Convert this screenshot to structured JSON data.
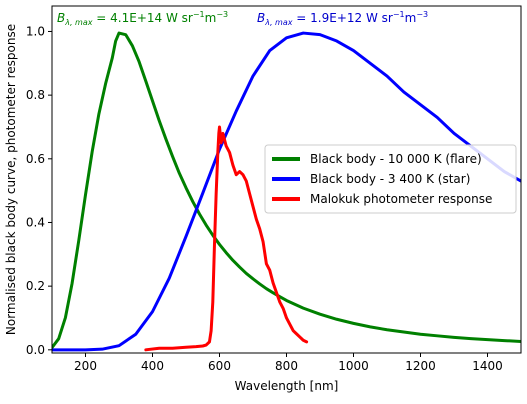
{
  "chart_data": {
    "type": "line",
    "title": "",
    "xlabel": "Wavelength [nm]",
    "ylabel": "Normalised black body curve, photometer response",
    "xlim": [
      100,
      1500
    ],
    "ylim": [
      -0.01,
      1.08
    ],
    "xticks": [
      200,
      400,
      600,
      800,
      1000,
      1200,
      1400
    ],
    "yticks": [
      0.0,
      0.2,
      0.4,
      0.6,
      0.8,
      1.0
    ],
    "grid": false,
    "legend_position": "center-right",
    "annotations": [
      {
        "prefix": "B",
        "sub": "λ, max",
        "text": " = 4.1E+14 W sr",
        "sup1": "−1",
        "mid": "m",
        "sup2": "−3",
        "color": "#008000"
      },
      {
        "prefix": "B",
        "sub": "λ, max",
        "text": " = 1.9E+12 W sr",
        "sup1": "−1",
        "mid": "m",
        "sup2": "−3",
        "color": "#0000cc"
      }
    ],
    "series": [
      {
        "name": "Black body - 10 000 K (flare)",
        "color": "#008000",
        "x": [
          100,
          120,
          140,
          160,
          180,
          200,
          220,
          240,
          260,
          280,
          290,
          300,
          320,
          340,
          360,
          380,
          400,
          420,
          440,
          460,
          480,
          500,
          520,
          540,
          560,
          580,
          600,
          620,
          640,
          660,
          680,
          700,
          720,
          740,
          760,
          780,
          800,
          850,
          900,
          950,
          1000,
          1050,
          1100,
          1150,
          1200,
          1250,
          1300,
          1350,
          1400,
          1450,
          1500
        ],
        "y": [
          0.007,
          0.035,
          0.101,
          0.209,
          0.344,
          0.487,
          0.623,
          0.741,
          0.836,
          0.917,
          0.97,
          0.995,
          0.99,
          0.955,
          0.905,
          0.844,
          0.782,
          0.72,
          0.662,
          0.607,
          0.555,
          0.509,
          0.466,
          0.427,
          0.392,
          0.36,
          0.331,
          0.305,
          0.281,
          0.26,
          0.24,
          0.223,
          0.207,
          0.192,
          0.179,
          0.167,
          0.155,
          0.131,
          0.112,
          0.096,
          0.083,
          0.072,
          0.063,
          0.056,
          0.049,
          0.044,
          0.039,
          0.035,
          0.032,
          0.029,
          0.026
        ]
      },
      {
        "name": "Black body - 3 400 K (star)",
        "color": "#0000ff",
        "x": [
          100,
          150,
          200,
          250,
          300,
          350,
          400,
          450,
          500,
          550,
          600,
          650,
          700,
          750,
          800,
          850,
          900,
          950,
          1000,
          1050,
          1100,
          1150,
          1200,
          1250,
          1300,
          1350,
          1400,
          1450,
          1500
        ],
        "y": [
          0.0,
          0.0,
          0.0,
          0.002,
          0.013,
          0.049,
          0.12,
          0.225,
          0.356,
          0.492,
          0.63,
          0.75,
          0.86,
          0.94,
          0.98,
          0.995,
          0.99,
          0.97,
          0.94,
          0.9,
          0.86,
          0.81,
          0.77,
          0.73,
          0.68,
          0.64,
          0.6,
          0.56,
          0.53
        ]
      },
      {
        "name": "Malokuk photometer response",
        "color": "#ff0000",
        "x": [
          380,
          420,
          460,
          500,
          530,
          550,
          560,
          570,
          575,
          580,
          585,
          590,
          595,
          598,
          600,
          605,
          610,
          615,
          620,
          630,
          640,
          650,
          660,
          670,
          680,
          690,
          700,
          710,
          720,
          730,
          740,
          750,
          760,
          770,
          780,
          790,
          800,
          810,
          820,
          830,
          840,
          850,
          860
        ],
        "y": [
          0.0,
          0.005,
          0.005,
          0.008,
          0.01,
          0.012,
          0.015,
          0.025,
          0.06,
          0.15,
          0.33,
          0.49,
          0.62,
          0.68,
          0.7,
          0.65,
          0.68,
          0.66,
          0.64,
          0.62,
          0.58,
          0.55,
          0.56,
          0.55,
          0.53,
          0.49,
          0.45,
          0.41,
          0.38,
          0.34,
          0.27,
          0.25,
          0.21,
          0.18,
          0.15,
          0.13,
          0.1,
          0.08,
          0.06,
          0.05,
          0.04,
          0.03,
          0.025
        ]
      }
    ]
  }
}
